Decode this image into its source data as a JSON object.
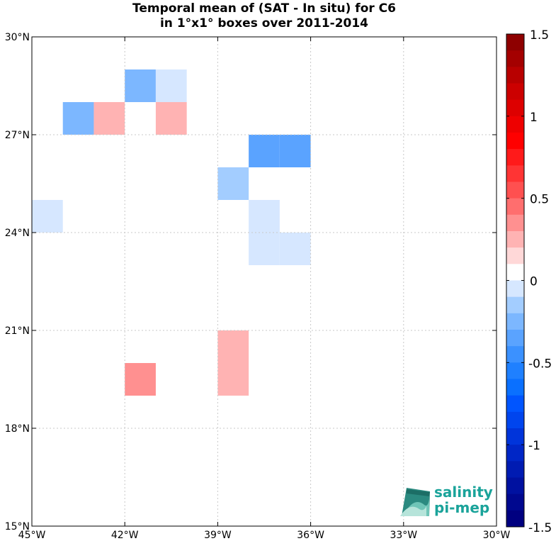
{
  "chart_data": {
    "type": "heatmap",
    "title": [
      "Temporal mean of (SAT - In situ) for C6",
      "in 1°x1° boxes over 2011-2014"
    ],
    "x_range": [
      -45,
      -30
    ],
    "y_range": [
      15,
      30
    ],
    "x_ticks": [
      {
        "value": -45,
        "label": "45°W"
      },
      {
        "value": -42,
        "label": "42°W"
      },
      {
        "value": -39,
        "label": "39°W"
      },
      {
        "value": -36,
        "label": "36°W"
      },
      {
        "value": -33,
        "label": "33°W"
      },
      {
        "value": -30,
        "label": "30°W"
      }
    ],
    "y_ticks": [
      {
        "value": 30,
        "label": "30°N"
      },
      {
        "value": 27,
        "label": "27°N"
      },
      {
        "value": 24,
        "label": "24°N"
      },
      {
        "value": 21,
        "label": "21°N"
      },
      {
        "value": 18,
        "label": "18°N"
      },
      {
        "value": 15,
        "label": "15°N"
      }
    ],
    "grid": "dotted",
    "cells": [
      {
        "lon": -42,
        "lat": 28,
        "value": -0.3
      },
      {
        "lon": -41,
        "lat": 28,
        "value": -0.15
      },
      {
        "lon": -44,
        "lat": 27,
        "value": -0.3
      },
      {
        "lon": -43,
        "lat": 27,
        "value": 0.15
      },
      {
        "lon": -41,
        "lat": 27,
        "value": 0.15
      },
      {
        "lon": -38,
        "lat": 26,
        "value": -0.4
      },
      {
        "lon": -37,
        "lat": 26,
        "value": -0.4
      },
      {
        "lon": -39,
        "lat": 25,
        "value": -0.2
      },
      {
        "lon": -45,
        "lat": 24,
        "value": -0.15
      },
      {
        "lon": -38,
        "lat": 24,
        "value": -0.15
      },
      {
        "lon": -38,
        "lat": 23,
        "value": -0.15
      },
      {
        "lon": -37,
        "lat": 23,
        "value": -0.15
      },
      {
        "lon": -39,
        "lat": 20,
        "value": 0.15
      },
      {
        "lon": -39,
        "lat": 19,
        "value": 0.15
      },
      {
        "lon": -42,
        "lat": 19,
        "value": 0.3
      }
    ],
    "colorbar": {
      "min": -1.5,
      "max": 1.5,
      "step": 0.1,
      "tick_labels": [
        "1.5",
        "1",
        "0.5",
        "0",
        "-0.5",
        "-1",
        "-1.5"
      ],
      "tick_values": [
        1.5,
        1,
        0.5,
        0,
        -0.5,
        -1,
        -1.5
      ],
      "colors": {
        "-1.5": "#000080",
        "-1.4": "#00088f",
        "-1.3": "#0011a0",
        "-1.2": "#001bb2",
        "-1.1": "#0026c6",
        "-1.0": "#0034da",
        "-0.9": "#0045ee",
        "-0.8": "#0055ff",
        "-0.7": "#0a70ff",
        "-0.6": "#1f80ff",
        "-0.5": "#3b91ff",
        "-0.4": "#5aa3ff",
        "-0.3": "#7cb7ff",
        "-0.2": "#a3cdff",
        "-0.1": "#d6e7ff",
        "0.0": "#ffffff",
        "0.1": "#ffd8d8",
        "0.2": "#ffb3b3",
        "0.3": "#ff9090",
        "0.4": "#ff6e6e",
        "0.5": "#ff5050",
        "0.6": "#ff3434",
        "0.7": "#ff1a1a",
        "0.8": "#ff0000",
        "0.9": "#ee0000",
        "1.0": "#dd0000",
        "1.1": "#cc0000",
        "1.2": "#b80000",
        "1.3": "#a40000",
        "1.4": "#8e0000"
      }
    }
  },
  "logo": {
    "line1": "salinity",
    "line2": "pi-mep"
  }
}
